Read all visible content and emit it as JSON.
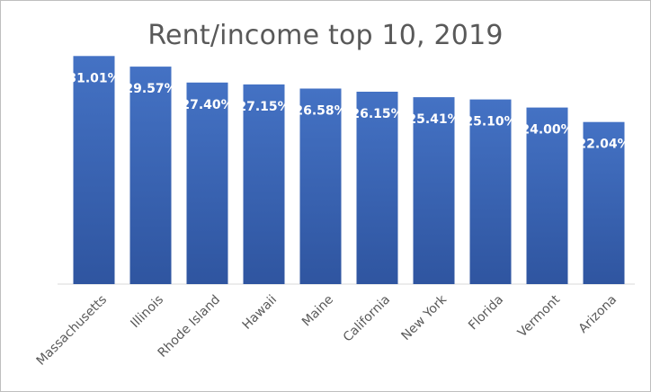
{
  "chart_data": {
    "type": "bar",
    "title": "Rent/income top 10, 2019",
    "categories": [
      "Massachusetts",
      "Illinois",
      "Rhode Island",
      "Hawaii",
      "Maine",
      "California",
      "New York",
      "Florida",
      "Vermont",
      "Arizona"
    ],
    "values": [
      31.01,
      29.57,
      27.4,
      27.15,
      26.58,
      26.15,
      25.41,
      25.1,
      24.0,
      22.04
    ],
    "data_labels": [
      "31.01%",
      "29.57%",
      "27.40%",
      "27.15%",
      "26.58%",
      "26.15%",
      "25.41%",
      "25.10%",
      "24.00%",
      "22.04%"
    ],
    "xlabel": "",
    "ylabel": "",
    "ylim": [
      0,
      33
    ],
    "grid": false,
    "legend": "none",
    "colors": {
      "bar_top": "#4472c4",
      "bar_bottom": "#2f55a0",
      "label": "#ffffff",
      "axis_text": "#595959",
      "axis_line": "#d9d9d9"
    }
  }
}
